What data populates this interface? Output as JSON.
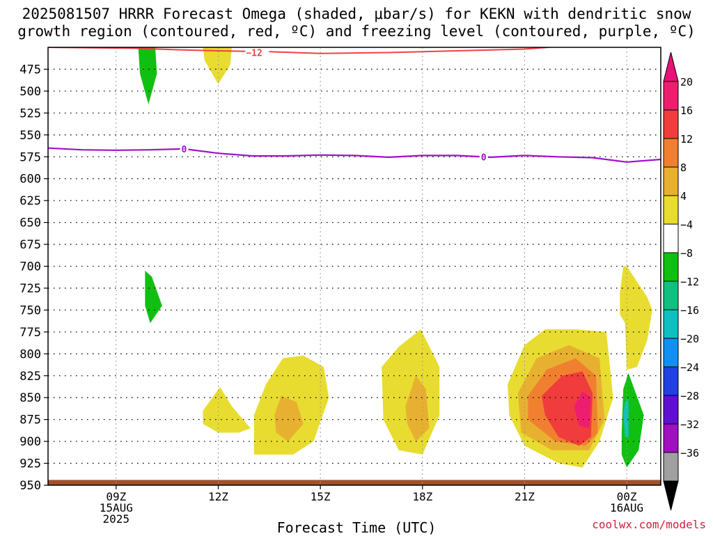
{
  "title_line1": "2025081507 HRRR Forecast Omega (shaded, μbar/s) for KEKN with dendritic snow",
  "title_line2": "growth region (contoured, red, ºC) and freezing level (contoured, purple, ºC)",
  "credit": "coolwx.com/models",
  "chart_data": {
    "type": "heatmap",
    "xlabel": "Forecast Time (UTC)",
    "ylabel": "",
    "x_range_hours": [
      7.0,
      25.0
    ],
    "y_range_mb": [
      450,
      950
    ],
    "y_ticks": [
      475,
      500,
      525,
      550,
      575,
      600,
      625,
      650,
      675,
      700,
      725,
      750,
      775,
      800,
      825,
      850,
      875,
      900,
      925,
      950
    ],
    "x_ticks": [
      {
        "hour": 9,
        "lines": [
          "09Z",
          "15AUG",
          "2025"
        ]
      },
      {
        "hour": 12,
        "lines": [
          "12Z"
        ]
      },
      {
        "hour": 15,
        "lines": [
          "15Z"
        ]
      },
      {
        "hour": 18,
        "lines": [
          "18Z"
        ]
      },
      {
        "hour": 21,
        "lines": [
          "21Z"
        ]
      },
      {
        "hour": 24,
        "lines": [
          "00Z",
          "16AUG"
        ]
      }
    ],
    "colorbar": {
      "labels": [
        "20",
        "16",
        "12",
        "8",
        "4",
        "−4",
        "−8",
        "−12",
        "−16",
        "−20",
        "−24",
        "−28",
        "−32",
        "−36"
      ],
      "colors": [
        "#ee1e6e",
        "#f03c3c",
        "#f08030",
        "#e8b030",
        "#e8dc30",
        "#ffffff",
        "#10c010",
        "#10c080",
        "#10c0c0",
        "#1090f0",
        "#2040e0",
        "#6010d0",
        "#a010c0",
        "#a0a0a0"
      ],
      "top_color": "#e8107a",
      "bottom_color": "#000000"
    },
    "omega_regions": [
      {
        "level": "-8",
        "color": "#10c010",
        "points": [
          [
            9.65,
            450
          ],
          [
            10.15,
            450
          ],
          [
            10.2,
            480
          ],
          [
            9.95,
            515
          ],
          [
            9.7,
            480
          ]
        ]
      },
      {
        "level": "4",
        "color": "#e8dc30",
        "points": [
          [
            11.55,
            450
          ],
          [
            12.4,
            450
          ],
          [
            12.35,
            470
          ],
          [
            12.0,
            492
          ],
          [
            11.6,
            465
          ]
        ]
      },
      {
        "level": "-8",
        "color": "#10c010",
        "points": [
          [
            9.85,
            705
          ],
          [
            10.05,
            712
          ],
          [
            10.35,
            745
          ],
          [
            10.0,
            765
          ],
          [
            9.85,
            745
          ]
        ]
      },
      {
        "level": "4",
        "color": "#e8dc30",
        "points": [
          [
            11.55,
            865
          ],
          [
            12.05,
            838
          ],
          [
            12.4,
            860
          ],
          [
            12.95,
            885
          ],
          [
            12.6,
            890
          ],
          [
            12.0,
            890
          ],
          [
            11.55,
            880
          ]
        ]
      },
      {
        "level": "4",
        "color": "#e8dc30",
        "points": [
          [
            13.05,
            915
          ],
          [
            13.05,
            870
          ],
          [
            13.4,
            835
          ],
          [
            13.9,
            805
          ],
          [
            14.5,
            802
          ],
          [
            15.1,
            815
          ],
          [
            15.25,
            850
          ],
          [
            14.8,
            900
          ],
          [
            14.2,
            915
          ]
        ]
      },
      {
        "level": "8",
        "color": "#e8b030",
        "points": [
          [
            13.65,
            870
          ],
          [
            13.85,
            848
          ],
          [
            14.3,
            855
          ],
          [
            14.5,
            880
          ],
          [
            14.05,
            900
          ],
          [
            13.7,
            890
          ]
        ]
      },
      {
        "level": "4",
        "color": "#e8dc30",
        "points": [
          [
            16.8,
            815
          ],
          [
            17.3,
            792
          ],
          [
            17.95,
            772
          ],
          [
            18.5,
            815
          ],
          [
            18.5,
            870
          ],
          [
            18.0,
            915
          ],
          [
            17.3,
            910
          ],
          [
            16.85,
            875
          ]
        ]
      },
      {
        "level": "8",
        "color": "#e8b030",
        "points": [
          [
            17.5,
            860
          ],
          [
            17.8,
            825
          ],
          [
            18.1,
            840
          ],
          [
            18.2,
            885
          ],
          [
            17.8,
            900
          ],
          [
            17.55,
            880
          ]
        ]
      },
      {
        "level": "4",
        "color": "#e8dc30",
        "points": [
          [
            20.5,
            835
          ],
          [
            21.0,
            790
          ],
          [
            21.6,
            772
          ],
          [
            22.5,
            772
          ],
          [
            23.4,
            775
          ],
          [
            23.6,
            850
          ],
          [
            23.2,
            900
          ],
          [
            22.7,
            930
          ],
          [
            22.0,
            925
          ],
          [
            21.0,
            905
          ],
          [
            20.55,
            870
          ]
        ]
      },
      {
        "level": "8",
        "color": "#e8b030",
        "points": [
          [
            20.8,
            845
          ],
          [
            21.35,
            805
          ],
          [
            22.3,
            790
          ],
          [
            23.2,
            805
          ],
          [
            23.35,
            875
          ],
          [
            22.9,
            910
          ],
          [
            21.8,
            910
          ],
          [
            20.9,
            890
          ]
        ]
      },
      {
        "level": "12",
        "color": "#f08030",
        "points": [
          [
            21.1,
            848
          ],
          [
            21.65,
            818
          ],
          [
            22.5,
            805
          ],
          [
            23.1,
            825
          ],
          [
            23.15,
            890
          ],
          [
            22.8,
            905
          ],
          [
            21.9,
            900
          ],
          [
            21.1,
            875
          ]
        ]
      },
      {
        "level": "16",
        "color": "#f03c3c",
        "points": [
          [
            21.5,
            848
          ],
          [
            22.1,
            825
          ],
          [
            22.7,
            820
          ],
          [
            23.0,
            845
          ],
          [
            22.95,
            895
          ],
          [
            22.6,
            905
          ],
          [
            22.0,
            895
          ],
          [
            21.6,
            870
          ]
        ]
      },
      {
        "level": "20",
        "color": "#ee1e6e",
        "points": [
          [
            22.45,
            860
          ],
          [
            22.7,
            843
          ],
          [
            22.95,
            850
          ],
          [
            22.9,
            885
          ],
          [
            22.6,
            882
          ]
        ]
      },
      {
        "level": "-8",
        "color": "#10c010",
        "points": [
          [
            23.85,
            890
          ],
          [
            23.9,
            840
          ],
          [
            24.05,
            822
          ],
          [
            24.5,
            870
          ],
          [
            24.35,
            910
          ],
          [
            24.0,
            930
          ],
          [
            23.85,
            915
          ]
        ]
      },
      {
        "level": "-12",
        "color": "#10c0c0",
        "points": [
          [
            23.9,
            870
          ],
          [
            23.95,
            855
          ],
          [
            24.05,
            852
          ],
          [
            24.05,
            895
          ],
          [
            23.95,
            895
          ]
        ]
      },
      {
        "level": "4",
        "color": "#e8dc30",
        "points": [
          [
            23.9,
            700
          ],
          [
            24.0,
            700
          ],
          [
            24.6,
            735
          ],
          [
            24.75,
            750
          ],
          [
            24.6,
            785
          ],
          [
            24.3,
            815
          ],
          [
            24.0,
            818
          ],
          [
            23.95,
            765
          ],
          [
            23.8,
            755
          ],
          [
            23.8,
            730
          ]
        ]
      },
      {
        "level": "4",
        "color": "#e8dc30",
        "points": [
          [
            23.9,
            700
          ],
          [
            24.0,
            700
          ],
          [
            24.0,
            705
          ],
          [
            23.9,
            705
          ]
        ]
      }
    ],
    "dendritic_contour": {
      "label": "−12",
      "color": "#f04040",
      "label_hour": 13.0,
      "points": [
        [
          7.0,
          450
        ],
        [
          9.5,
          451
        ],
        [
          11.0,
          453
        ],
        [
          12.0,
          454
        ],
        [
          13.5,
          455
        ],
        [
          15.0,
          457
        ],
        [
          17.0,
          456
        ],
        [
          19.0,
          454
        ],
        [
          21.0,
          452
        ],
        [
          21.7,
          450
        ]
      ]
    },
    "freezing_level_contour": {
      "label": "0",
      "color": "#a010c8",
      "label_hours": [
        11.0,
        19.8
      ],
      "points": [
        [
          7.0,
          565
        ],
        [
          8.0,
          567
        ],
        [
          9.0,
          567.5
        ],
        [
          10.0,
          567
        ],
        [
          11.0,
          566
        ],
        [
          12.0,
          571
        ],
        [
          13.0,
          574
        ],
        [
          14.0,
          574
        ],
        [
          15.0,
          573
        ],
        [
          16.0,
          573.5
        ],
        [
          17.0,
          575.5
        ],
        [
          18.0,
          573.5
        ],
        [
          19.0,
          573.5
        ],
        [
          20.0,
          575.5
        ],
        [
          21.0,
          573.5
        ],
        [
          22.0,
          575
        ],
        [
          23.0,
          576
        ],
        [
          24.0,
          581
        ],
        [
          25.0,
          578
        ]
      ]
    }
  }
}
